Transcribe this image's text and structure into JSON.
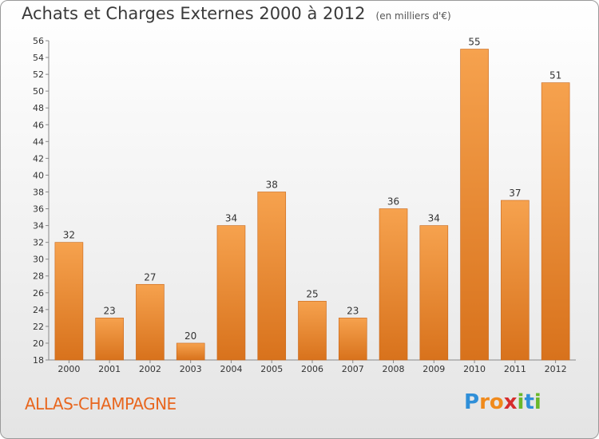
{
  "header": {
    "title": "Achats et Charges Externes 2000 à 2012",
    "unit": "(en milliers d'€)"
  },
  "footer": {
    "town": "ALLAS-CHAMPAGNE",
    "brand_letters": [
      {
        "ch": "P",
        "color": "#2f8fd8"
      },
      {
        "ch": "r",
        "color": "#f08a1c"
      },
      {
        "ch": "o",
        "color": "#f08a1c"
      },
      {
        "ch": "x",
        "color": "#d62d2d"
      },
      {
        "ch": "i",
        "color": "#6ab82a"
      },
      {
        "ch": "t",
        "color": "#2f8fd8"
      },
      {
        "ch": "i",
        "color": "#6ab82a"
      }
    ]
  },
  "colors": {
    "bar_top": "#f6a24e",
    "bar_bottom": "#d8721c",
    "town": "#e8661e"
  },
  "chart_data": {
    "type": "bar",
    "title": "Achats et Charges Externes 2000 à 2012",
    "subtitle": "(en milliers d'€)",
    "xlabel": "",
    "ylabel": "",
    "categories": [
      "2000",
      "2001",
      "2002",
      "2003",
      "2004",
      "2005",
      "2006",
      "2007",
      "2008",
      "2009",
      "2010",
      "2011",
      "2012"
    ],
    "values": [
      32,
      23,
      27,
      20,
      34,
      38,
      25,
      23,
      36,
      34,
      55,
      37,
      51
    ],
    "ylim": [
      18,
      56
    ],
    "yticks": [
      18,
      20,
      22,
      24,
      26,
      28,
      30,
      32,
      34,
      36,
      38,
      40,
      42,
      44,
      46,
      48,
      50,
      52,
      54,
      56
    ],
    "grid": false,
    "legend": "none",
    "data_labels": true
  }
}
